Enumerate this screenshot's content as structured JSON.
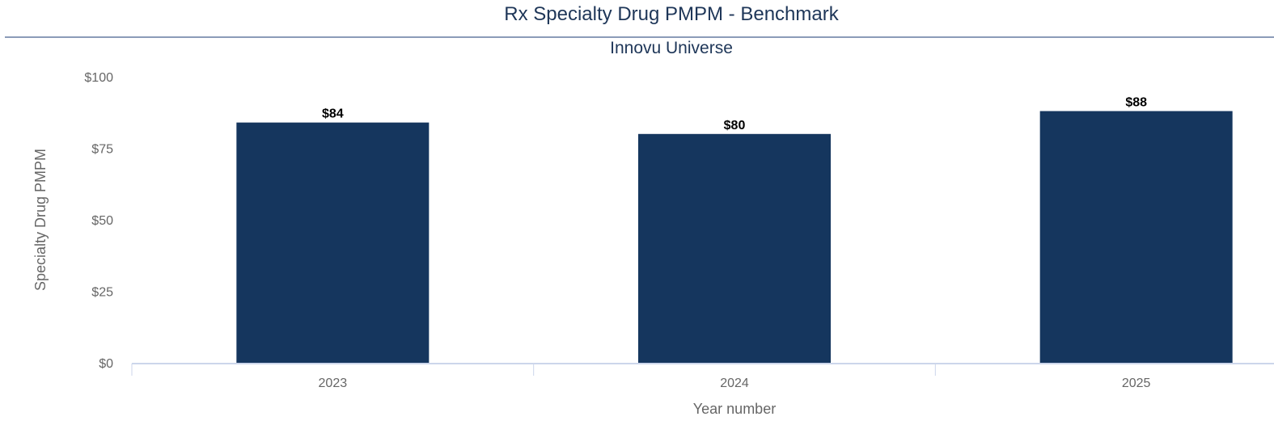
{
  "title": "Rx Specialty Drug PMPM - Benchmark",
  "subtitle": "Innovu Universe",
  "colors": {
    "bar": "#15365e",
    "title": "#1e3658",
    "axis_text": "#666666",
    "axis_line": "#ccd6eb",
    "data_label": "#000000"
  },
  "chart_data": {
    "type": "bar",
    "title": "Rx Specialty Drug PMPM - Benchmark",
    "subtitle": "Innovu Universe",
    "categories": [
      "2023",
      "2024",
      "2025"
    ],
    "values": [
      84,
      80,
      88
    ],
    "data_labels": [
      "$84",
      "$80",
      "$88"
    ],
    "xlabel": "Year number",
    "ylabel": "Specialty Drug PMPM",
    "ylim": [
      0,
      100
    ],
    "yticks": [
      0,
      25,
      50,
      75,
      100
    ],
    "ytick_labels": [
      "$0",
      "$25",
      "$50",
      "$75",
      "$100"
    ],
    "grid": false,
    "legend": "none"
  }
}
